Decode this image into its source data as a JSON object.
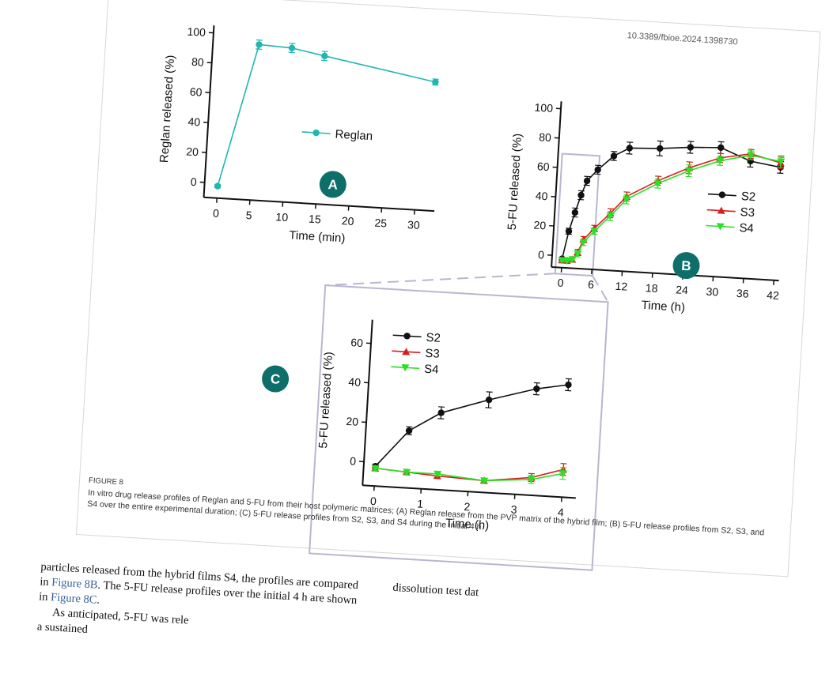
{
  "doi": "10.3389/fbioe.2024.1398730",
  "caption": {
    "figure_number": "FIGURE 8",
    "text": "In vitro drug release profiles of Reglan and 5-FU from their host polymeric matrices; (A) Reglan release from the PVP matrix of the hybrid film; (B) 5-FU release profiles from S2, S3, and S4 over the entire experimental duration; (C) 5-FU release profiles from S2, S3, and S4 during the initial 4 h."
  },
  "body_text": {
    "line1": "particles released from the hybrid films S4, the profiles are compared",
    "line1_tail": "dissolution   test   dat",
    "line2_pre": "in ",
    "line2_link": "Figure 8B",
    "line2_post": ". The 5-FU release profiles over the initial 4 h are shown",
    "line3_pre": "in ",
    "line3_link": "Figure 8C",
    "line3_post": ".",
    "line4": "As anticipated, 5-FU was rele",
    "line5": "a  sustained"
  },
  "colors": {
    "reglan": "#20b7b1",
    "s2": "#111111",
    "s3": "#d81e1e",
    "s4": "#29e025",
    "badge": "#0e6e6a",
    "zoom_box": "#b9b6cf"
  },
  "chart_data": [
    {
      "panel": "A",
      "type": "line",
      "xlabel": "Time (min)",
      "ylabel": "Reglan released (%)",
      "xlim": [
        -2,
        33
      ],
      "ylim": [
        -10,
        105
      ],
      "xticks": [
        0,
        5,
        10,
        15,
        20,
        25,
        30
      ],
      "yticks": [
        0,
        20,
        40,
        60,
        80,
        100
      ],
      "legend_position": "center-right",
      "series": [
        {
          "name": "Reglan",
          "x": [
            0,
            5,
            10,
            15,
            32
          ],
          "y": [
            -2,
            94,
            93,
            89,
            76
          ],
          "err": [
            1,
            3,
            3,
            3,
            2
          ]
        }
      ]
    },
    {
      "panel": "B",
      "type": "line",
      "xlabel": "Time (h)",
      "ylabel": "5-FU released (%)",
      "xlim": [
        -2,
        43
      ],
      "ylim": [
        -8,
        105
      ],
      "xticks": [
        0,
        6,
        12,
        18,
        24,
        30,
        36,
        42
      ],
      "yticks": [
        0,
        20,
        40,
        60,
        80,
        100
      ],
      "legend_position": "center-right",
      "series": [
        {
          "name": "S2",
          "x": [
            0,
            1,
            2,
            3,
            4,
            6,
            9,
            12,
            18,
            24,
            30,
            36,
            42
          ],
          "y": [
            -2,
            17,
            30,
            42,
            52,
            60,
            70,
            76,
            77,
            79,
            80,
            72,
            69
          ],
          "err": [
            1,
            2,
            3,
            3,
            3,
            3,
            3,
            4,
            5,
            4,
            4,
            4,
            4
          ]
        },
        {
          "name": "S3",
          "x": [
            0,
            1,
            2,
            3,
            4,
            6,
            9,
            12,
            18,
            24,
            30,
            36,
            42
          ],
          "y": [
            -3,
            -3,
            -2,
            3,
            12,
            20,
            31,
            43,
            55,
            65,
            73,
            77,
            72
          ],
          "err": [
            1,
            1,
            1,
            2,
            2,
            2,
            3,
            3,
            3,
            4,
            3,
            3,
            4
          ]
        },
        {
          "name": "S4",
          "x": [
            0,
            1,
            2,
            3,
            4,
            6,
            9,
            12,
            18,
            24,
            30,
            36,
            42
          ],
          "y": [
            -3,
            -3,
            -2,
            2,
            10,
            18,
            29,
            41,
            53,
            63,
            71,
            76,
            73
          ],
          "err": [
            1,
            1,
            1,
            2,
            2,
            2,
            3,
            3,
            3,
            4,
            3,
            3,
            4
          ]
        }
      ]
    },
    {
      "panel": "C",
      "type": "line",
      "xlabel": "Time (h)",
      "ylabel": "5-FU released (%)",
      "xlim": [
        -0.25,
        4.3
      ],
      "ylim": [
        -12,
        72
      ],
      "xticks": [
        0,
        1,
        2,
        3,
        4
      ],
      "yticks": [
        0,
        20,
        40,
        60
      ],
      "legend_position": "top-left",
      "series": [
        {
          "name": "S2",
          "x": [
            0,
            0.67,
            1.33,
            2.33,
            3.33,
            4
          ],
          "y": [
            -2,
            17,
            27,
            35,
            42,
            45
          ],
          "err": [
            1,
            2,
            3,
            4,
            3,
            3
          ]
        },
        {
          "name": "S3",
          "x": [
            0,
            0.67,
            1.33,
            2.33,
            3.33,
            4
          ],
          "y": [
            -3,
            -4,
            -5,
            -6,
            -3,
            2
          ],
          "err": [
            1,
            1,
            1,
            1,
            2,
            3
          ]
        },
        {
          "name": "S4",
          "x": [
            0,
            0.67,
            1.33,
            2.33,
            3.33,
            4
          ],
          "y": [
            -3,
            -4,
            -4,
            -6,
            -4,
            0
          ],
          "err": [
            1,
            1,
            1,
            1,
            2,
            3
          ]
        }
      ]
    }
  ],
  "badges": [
    "A",
    "B",
    "C"
  ]
}
